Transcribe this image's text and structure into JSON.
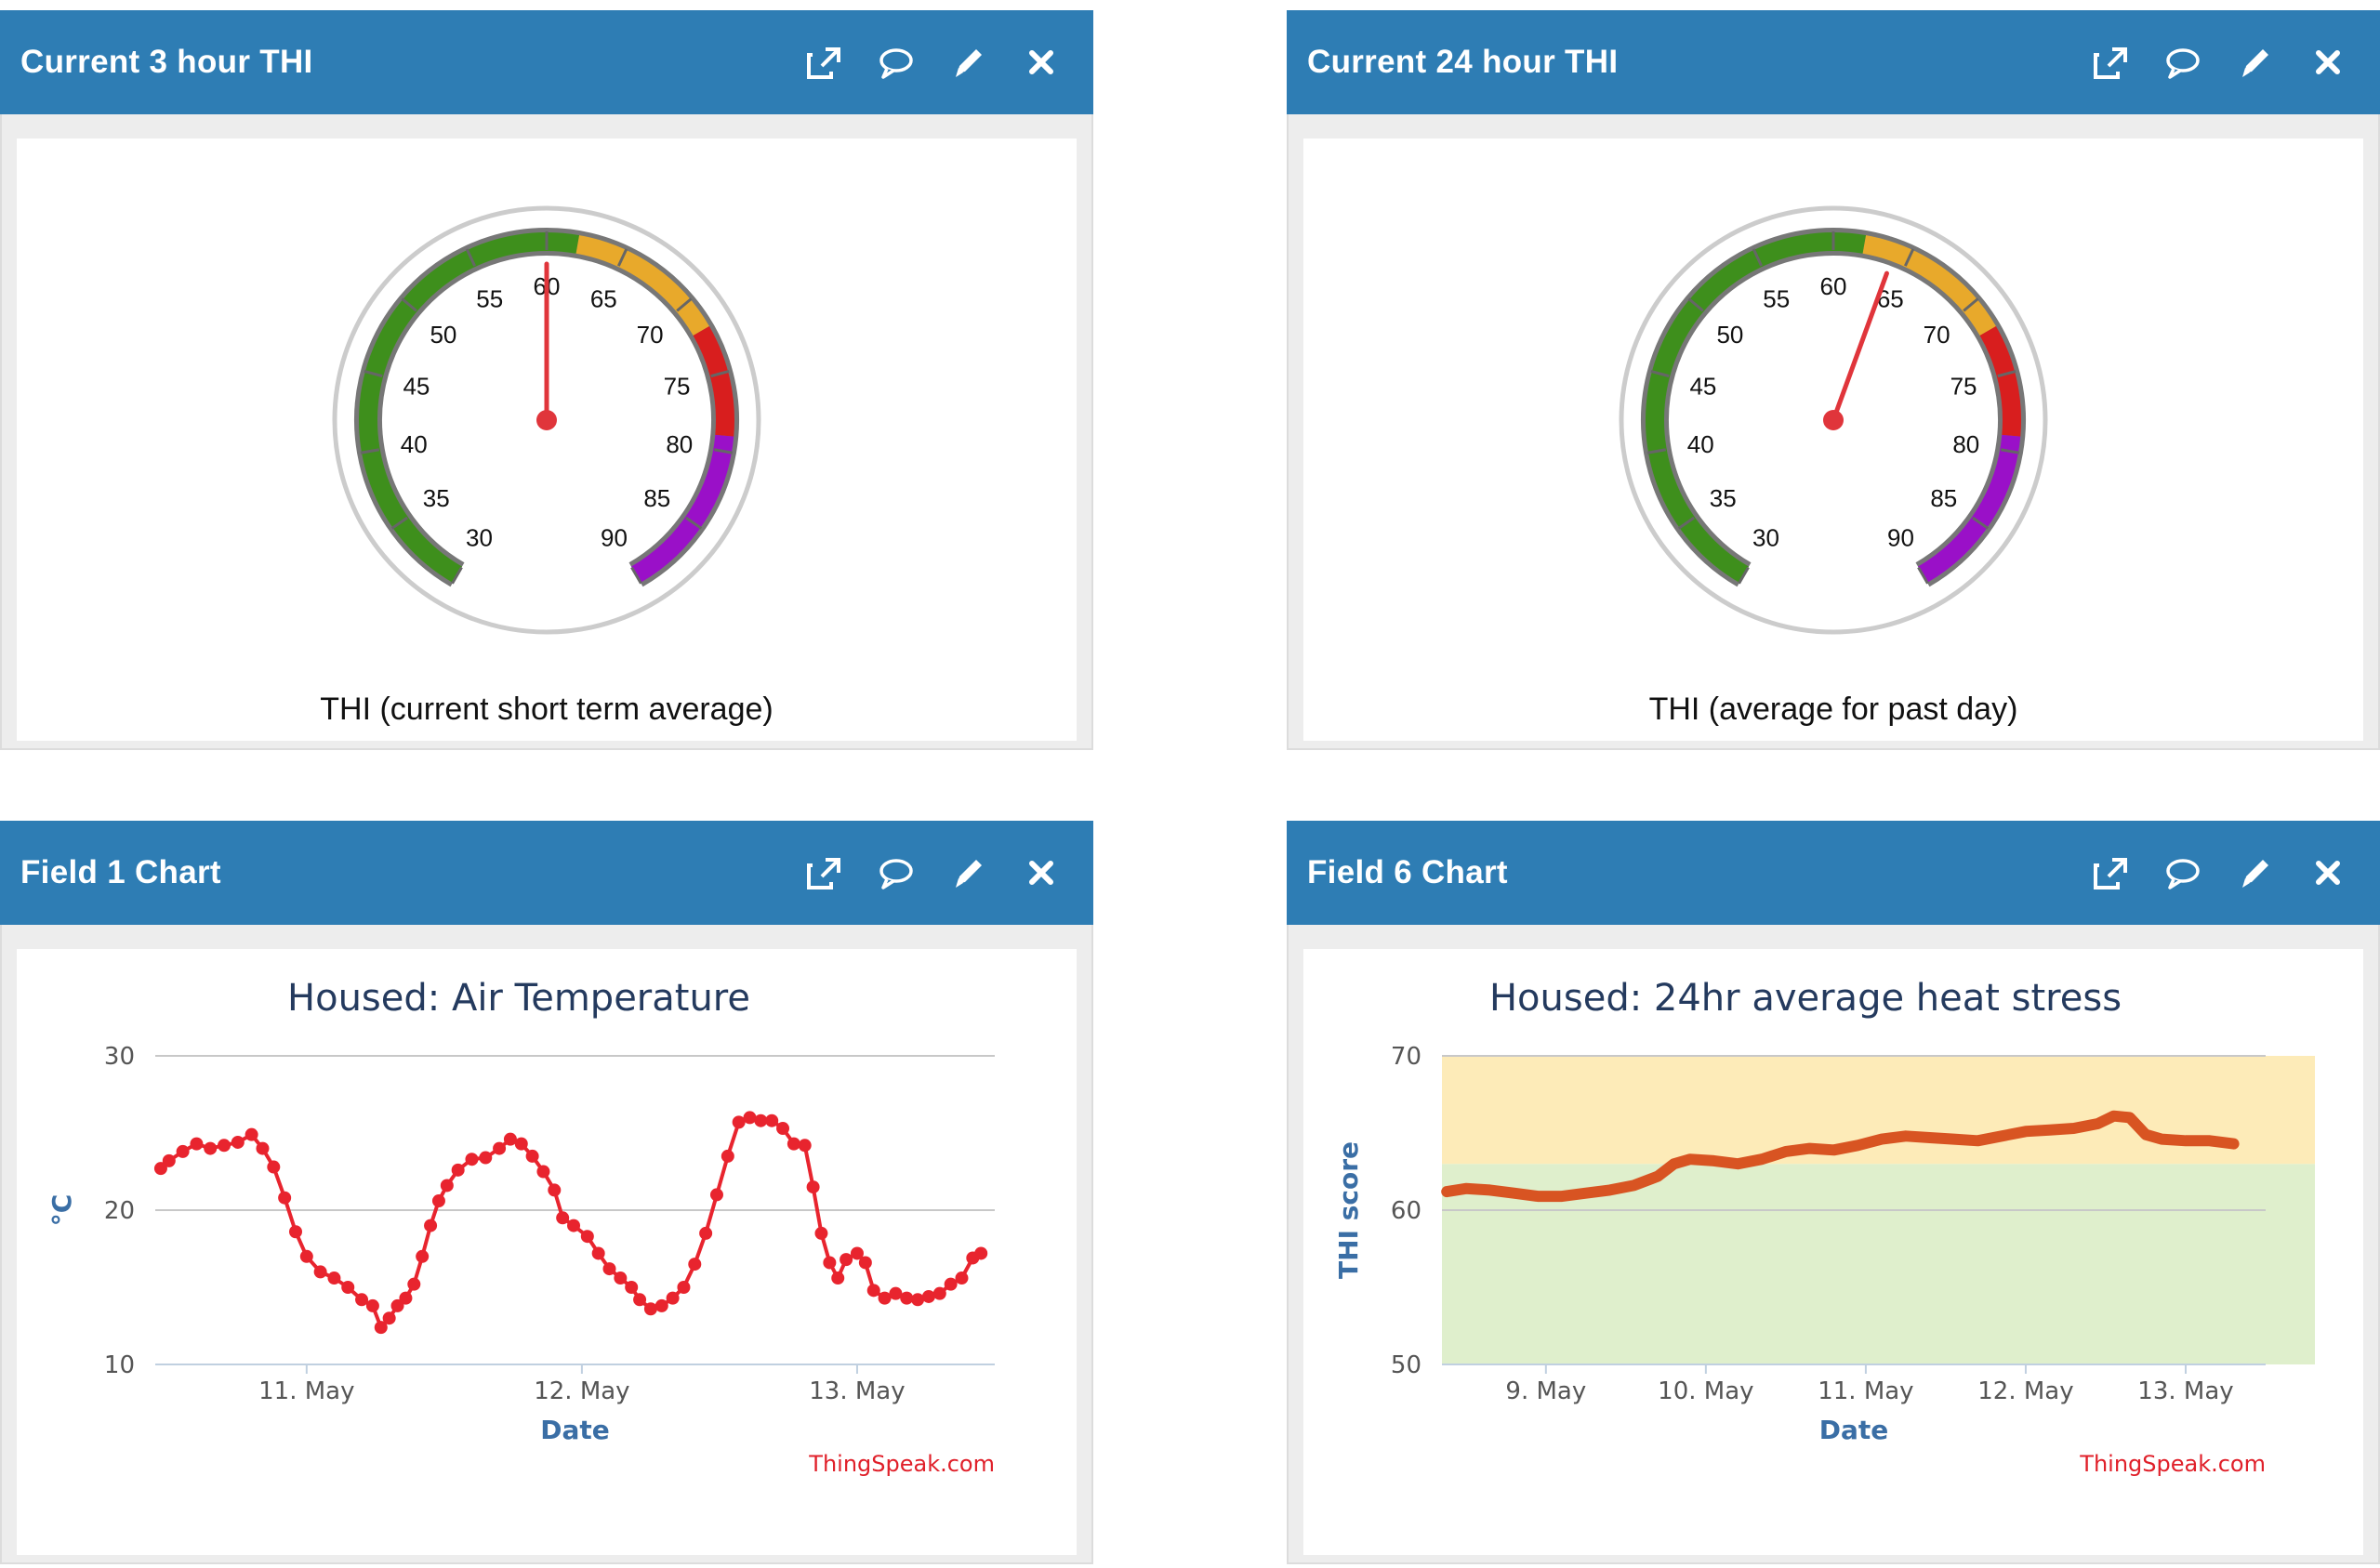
{
  "panels": [
    {
      "title": "Current 3 hour THI",
      "gauge": {
        "value": 60,
        "min": 30,
        "max": 90,
        "ticks": [
          "30",
          "35",
          "40",
          "45",
          "50",
          "55",
          "60",
          "65",
          "70",
          "75",
          "80",
          "85",
          "90"
        ],
        "label": "THI (current short term average)",
        "bands": [
          {
            "from": 30,
            "to": 62,
            "color": "#3e8f1c"
          },
          {
            "from": 62,
            "to": 72,
            "color": "#e8a92b"
          },
          {
            "from": 72,
            "to": 79,
            "color": "#d81e1e"
          },
          {
            "from": 79,
            "to": 90,
            "color": "#9a10c8"
          }
        ]
      }
    },
    {
      "title": "Current 24 hour THI",
      "gauge": {
        "value": 64,
        "min": 30,
        "max": 90,
        "ticks": [
          "30",
          "35",
          "40",
          "45",
          "50",
          "55",
          "60",
          "65",
          "70",
          "75",
          "80",
          "85",
          "90"
        ],
        "label": "THI (average for past day)",
        "bands": [
          {
            "from": 30,
            "to": 62,
            "color": "#3e8f1c"
          },
          {
            "from": 62,
            "to": 72,
            "color": "#e8a92b"
          },
          {
            "from": 72,
            "to": 79,
            "color": "#d81e1e"
          },
          {
            "from": 79,
            "to": 90,
            "color": "#9a10c8"
          }
        ]
      }
    },
    {
      "title": "Field 1 Chart",
      "chart_data": {
        "type": "line",
        "title": "Housed: Air Temperature",
        "xlabel": "Date",
        "ylabel": "°C",
        "ylim": [
          10,
          30
        ],
        "yticks": [
          "30",
          "20",
          "10"
        ],
        "xticks": [
          {
            "label": "11. May",
            "x": 11.0
          },
          {
            "label": "12. May",
            "x": 12.0
          },
          {
            "label": "13. May",
            "x": 13.0
          }
        ],
        "xlim": [
          10.45,
          13.5
        ],
        "credit": "ThingSpeak.com",
        "series": [
          {
            "color": "#e8242e",
            "markers": true,
            "points": [
              [
                10.47,
                22.7
              ],
              [
                10.5,
                23.2
              ],
              [
                10.55,
                23.8
              ],
              [
                10.6,
                24.3
              ],
              [
                10.65,
                24.0
              ],
              [
                10.7,
                24.2
              ],
              [
                10.75,
                24.4
              ],
              [
                10.8,
                24.9
              ],
              [
                10.84,
                24.0
              ],
              [
                10.88,
                22.8
              ],
              [
                10.92,
                20.8
              ],
              [
                10.96,
                18.6
              ],
              [
                11.0,
                17.0
              ],
              [
                11.05,
                16.0
              ],
              [
                11.1,
                15.6
              ],
              [
                11.15,
                15.0
              ],
              [
                11.2,
                14.2
              ],
              [
                11.24,
                13.8
              ],
              [
                11.27,
                12.4
              ],
              [
                11.3,
                13.0
              ],
              [
                11.33,
                13.8
              ],
              [
                11.36,
                14.3
              ],
              [
                11.39,
                15.2
              ],
              [
                11.42,
                17.0
              ],
              [
                11.45,
                19.0
              ],
              [
                11.48,
                20.6
              ],
              [
                11.51,
                21.6
              ],
              [
                11.55,
                22.6
              ],
              [
                11.6,
                23.3
              ],
              [
                11.65,
                23.4
              ],
              [
                11.7,
                24.0
              ],
              [
                11.74,
                24.6
              ],
              [
                11.78,
                24.3
              ],
              [
                11.82,
                23.5
              ],
              [
                11.86,
                22.5
              ],
              [
                11.9,
                21.3
              ],
              [
                11.93,
                19.5
              ],
              [
                11.97,
                19.0
              ],
              [
                12.02,
                18.3
              ],
              [
                12.06,
                17.2
              ],
              [
                12.1,
                16.2
              ],
              [
                12.14,
                15.6
              ],
              [
                12.18,
                15.0
              ],
              [
                12.21,
                14.2
              ],
              [
                12.25,
                13.6
              ],
              [
                12.29,
                13.8
              ],
              [
                12.33,
                14.3
              ],
              [
                12.37,
                15.0
              ],
              [
                12.41,
                16.5
              ],
              [
                12.45,
                18.5
              ],
              [
                12.49,
                21.0
              ],
              [
                12.53,
                23.5
              ],
              [
                12.57,
                25.7
              ],
              [
                12.61,
                26.0
              ],
              [
                12.65,
                25.8
              ],
              [
                12.69,
                25.8
              ],
              [
                12.73,
                25.3
              ],
              [
                12.77,
                24.3
              ],
              [
                12.81,
                24.2
              ],
              [
                12.84,
                21.5
              ],
              [
                12.87,
                18.5
              ],
              [
                12.9,
                16.6
              ],
              [
                12.93,
                15.6
              ],
              [
                12.96,
                16.8
              ],
              [
                13.0,
                17.2
              ],
              [
                13.03,
                16.6
              ],
              [
                13.06,
                14.8
              ],
              [
                13.1,
                14.3
              ],
              [
                13.14,
                14.6
              ],
              [
                13.18,
                14.3
              ],
              [
                13.22,
                14.2
              ],
              [
                13.26,
                14.4
              ],
              [
                13.3,
                14.6
              ],
              [
                13.34,
                15.2
              ],
              [
                13.38,
                15.6
              ],
              [
                13.42,
                16.9
              ],
              [
                13.45,
                17.2
              ]
            ]
          }
        ]
      }
    },
    {
      "title": "Field 6 Chart",
      "chart_data": {
        "type": "line",
        "title": "Housed: 24hr average heat stress",
        "xlabel": "Date",
        "ylabel": "THI score",
        "ylim": [
          50,
          70
        ],
        "yticks": [
          "70",
          "60",
          "50"
        ],
        "xticks": [
          {
            "label": "9. May",
            "x": 9.0
          },
          {
            "label": "10. May",
            "x": 10.0
          },
          {
            "label": "11. May",
            "x": 11.0
          },
          {
            "label": "12. May",
            "x": 12.0
          },
          {
            "label": "13. May",
            "x": 13.0
          }
        ],
        "xlim": [
          8.35,
          13.5
        ],
        "credit": "ThingSpeak.com",
        "bands": [
          {
            "from": 50,
            "to": 63,
            "color": "#dfefcc"
          },
          {
            "from": 63,
            "to": 70,
            "color": "#fdebb8"
          }
        ],
        "series": [
          {
            "color": "#d85422",
            "markers": false,
            "points": [
              [
                8.38,
                61.2
              ],
              [
                8.5,
                61.4
              ],
              [
                8.65,
                61.3
              ],
              [
                8.8,
                61.1
              ],
              [
                8.95,
                60.9
              ],
              [
                9.1,
                60.9
              ],
              [
                9.25,
                61.1
              ],
              [
                9.4,
                61.3
              ],
              [
                9.55,
                61.6
              ],
              [
                9.7,
                62.2
              ],
              [
                9.8,
                63.0
              ],
              [
                9.9,
                63.3
              ],
              [
                10.05,
                63.2
              ],
              [
                10.2,
                63.0
              ],
              [
                10.35,
                63.3
              ],
              [
                10.5,
                63.8
              ],
              [
                10.65,
                64.0
              ],
              [
                10.8,
                63.9
              ],
              [
                10.95,
                64.2
              ],
              [
                11.1,
                64.6
              ],
              [
                11.25,
                64.8
              ],
              [
                11.4,
                64.7
              ],
              [
                11.55,
                64.6
              ],
              [
                11.7,
                64.5
              ],
              [
                11.85,
                64.8
              ],
              [
                12.0,
                65.1
              ],
              [
                12.15,
                65.2
              ],
              [
                12.3,
                65.3
              ],
              [
                12.45,
                65.6
              ],
              [
                12.55,
                66.1
              ],
              [
                12.65,
                66.0
              ],
              [
                12.75,
                64.9
              ],
              [
                12.85,
                64.6
              ],
              [
                13.0,
                64.5
              ],
              [
                13.15,
                64.5
              ],
              [
                13.3,
                64.3
              ]
            ]
          }
        ]
      }
    }
  ]
}
